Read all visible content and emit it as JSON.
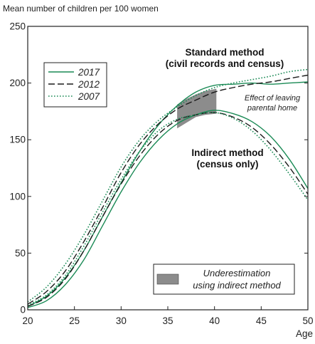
{
  "chart_data": {
    "type": "line",
    "title": "Mean number of children per 100 women",
    "xlabel": "Age",
    "ylabel": "",
    "xlim": [
      20,
      50
    ],
    "ylim": [
      0,
      250
    ],
    "x_ticks": [
      20,
      25,
      30,
      35,
      40,
      45,
      50
    ],
    "y_ticks": [
      0,
      50,
      100,
      150,
      200,
      250
    ],
    "grid": false,
    "legend_position": "top-left",
    "legend": [
      {
        "label": "2017",
        "style": "solid",
        "color": "#1a8a55"
      },
      {
        "label": "2012",
        "style": "dashed",
        "color": "#1a1a1a"
      },
      {
        "label": "2007",
        "style": "dotted",
        "color": "#1a8a55"
      }
    ],
    "series": [
      {
        "name": "2017",
        "method": "Standard method (civil records and census)",
        "style": "solid",
        "color": "#1a8a55",
        "x": [
          20,
          22,
          24,
          26,
          28,
          30,
          32,
          34,
          36,
          38,
          40,
          42,
          44,
          46,
          48,
          50
        ],
        "y": [
          3,
          12,
          28,
          52,
          82,
          112,
          140,
          163,
          180,
          192,
          198,
          199,
          200,
          199,
          200,
          201
        ]
      },
      {
        "name": "2012",
        "method": "Standard method (civil records and census)",
        "style": "dashed",
        "color": "#1a1a1a",
        "x": [
          20,
          22,
          24,
          26,
          28,
          30,
          32,
          34,
          36,
          38,
          40,
          42,
          44,
          46,
          48,
          50
        ],
        "y": [
          5,
          16,
          34,
          60,
          90,
          121,
          146,
          164,
          177,
          185,
          192,
          196,
          199,
          201,
          204,
          207
        ]
      },
      {
        "name": "2007",
        "method": "Standard method (civil records and census)",
        "style": "dotted",
        "color": "#1a8a55",
        "x": [
          20,
          22,
          24,
          26,
          28,
          30,
          32,
          34,
          36,
          38,
          40,
          42,
          44,
          46,
          48,
          50
        ],
        "y": [
          7,
          20,
          40,
          66,
          96,
          126,
          150,
          167,
          179,
          189,
          196,
          200,
          203,
          206,
          210,
          212
        ]
      },
      {
        "name": "2017",
        "method": "Indirect method (census only)",
        "style": "solid",
        "color": "#1a8a55",
        "x": [
          20,
          22,
          24,
          26,
          28,
          30,
          32,
          34,
          36,
          38,
          40,
          42,
          44,
          46,
          48,
          50
        ],
        "y": [
          2,
          8,
          22,
          44,
          74,
          104,
          130,
          150,
          164,
          172,
          176,
          173,
          166,
          153,
          133,
          107
        ]
      },
      {
        "name": "2012",
        "method": "Indirect method (census only)",
        "style": "dashed",
        "color": "#1a1a1a",
        "x": [
          20,
          22,
          24,
          26,
          28,
          30,
          32,
          34,
          36,
          38,
          40,
          42,
          44,
          46,
          48,
          50
        ],
        "y": [
          3,
          11,
          27,
          52,
          82,
          111,
          136,
          155,
          167,
          172,
          174,
          170,
          161,
          146,
          126,
          102
        ]
      },
      {
        "name": "2007",
        "method": "Indirect method (census only)",
        "style": "dotted",
        "color": "#1a8a55",
        "x": [
          20,
          22,
          24,
          26,
          28,
          30,
          32,
          34,
          36,
          38,
          40,
          42,
          44,
          46,
          48,
          50
        ],
        "y": [
          4,
          13,
          30,
          56,
          86,
          115,
          140,
          158,
          168,
          172,
          174,
          169,
          158,
          141,
          120,
          97
        ]
      }
    ],
    "shaded_region": {
      "label": "Underestimation using indirect method",
      "color": "#8c8c8c",
      "x": [
        36,
        37,
        38,
        39,
        40.2
      ],
      "y_upper": [
        181,
        186,
        190,
        193,
        195
      ],
      "y_lower": [
        160,
        165,
        170,
        172,
        173
      ]
    },
    "annotations": [
      {
        "id": "standard",
        "lines": [
          "Standard method",
          "(civil records and census)"
        ]
      },
      {
        "id": "indirect",
        "lines": [
          "Indirect method",
          "(census only)"
        ]
      },
      {
        "id": "leaving",
        "lines": [
          "Effect of leaving",
          "parental home"
        ]
      }
    ],
    "shaded_legend": [
      "Underestimation",
      "using indirect method"
    ]
  }
}
